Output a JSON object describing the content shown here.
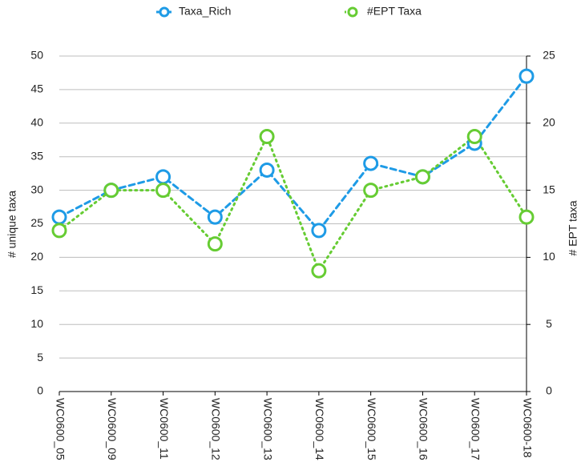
{
  "chart_data": {
    "type": "line",
    "categories": [
      "WC0600_05",
      "WC0600_09",
      "WC0600_11",
      "WC0600_12",
      "WC0600_13",
      "WC0600_14",
      "WC0600_15",
      "WC0600_16",
      "WC0600_17",
      "WC0600-18"
    ],
    "series": [
      {
        "name": "Taxa_Rich",
        "color": "#1e9be6",
        "line_style": "dashed",
        "values": [
          26,
          30,
          32,
          26,
          33,
          24,
          34,
          32,
          37,
          47
        ]
      },
      {
        "name": "#EPT Taxa",
        "color": "#66cc33",
        "line_style": "dotted",
        "axis": "y2",
        "values": [
          12,
          15,
          15,
          11,
          19,
          9,
          15,
          16,
          19,
          13
        ]
      }
    ],
    "ylabel": "# unique taxa",
    "y2label": "# EPT taxa",
    "ylim": [
      0,
      50
    ],
    "yticks": [
      0,
      5,
      10,
      15,
      20,
      25,
      30,
      35,
      40,
      45,
      50
    ],
    "y2lim": [
      0,
      25
    ],
    "y2ticks": [
      0,
      5,
      10,
      15,
      20,
      25
    ],
    "grid": true,
    "legend": "top"
  }
}
